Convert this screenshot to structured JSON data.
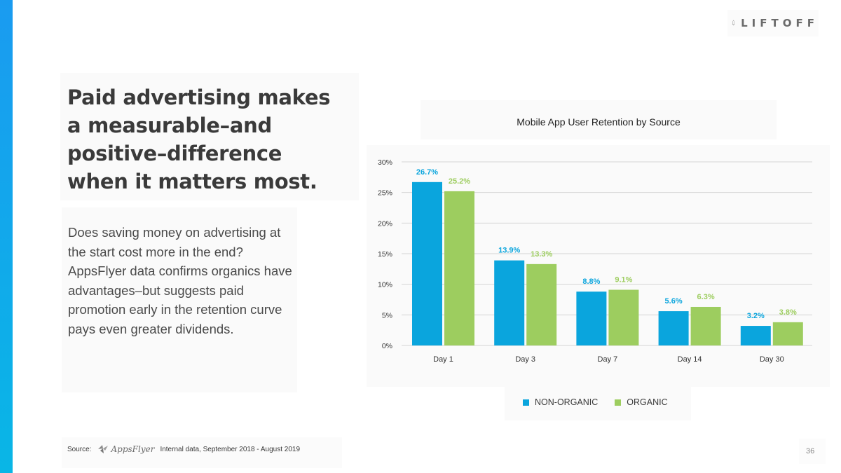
{
  "brand": {
    "logo_text": "LIFTOFF"
  },
  "slide": {
    "headline": "Paid advertising makes a measurable–and positive–difference when it matters most.",
    "body": "Does saving money on advertising at the start cost more in the end? AppsFlyer data confirms organics have advantages–but suggests paid promotion early in the retention curve pays even greater dividends.",
    "source_label": "Source:",
    "source_brand": "AppsFlyer",
    "source_note": "Internal data, September 2018 - August 2019",
    "page_number": "36"
  },
  "colors": {
    "non_organic": "#0aa5dd",
    "organic": "#9dcd5f",
    "grid": "#d4d4d4",
    "accent_bar_top": "#1a9bf0",
    "accent_bar_bottom": "#09b6e6"
  },
  "chart_data": {
    "type": "bar",
    "title": "Mobile App User Retention by Source",
    "categories": [
      "Day 1",
      "Day 3",
      "Day 7",
      "Day 14",
      "Day 30"
    ],
    "series": [
      {
        "name": "NON-ORGANIC",
        "values": [
          26.7,
          13.9,
          8.8,
          5.6,
          3.2
        ],
        "labels": [
          "26.7%",
          "13.9%",
          "8.8%",
          "5.6%",
          "3.2%"
        ]
      },
      {
        "name": "ORGANIC",
        "values": [
          25.2,
          13.3,
          9.1,
          6.3,
          3.8
        ],
        "labels": [
          "25.2%",
          "13.3%",
          "9.1%",
          "6.3%",
          "3.8%"
        ]
      }
    ],
    "yticks": [
      "0%",
      "5%",
      "10%",
      "15%",
      "20%",
      "25%",
      "30%"
    ],
    "ylim": [
      0,
      30
    ],
    "grid": true,
    "legend_position": "bottom",
    "xlabel": "",
    "ylabel": ""
  }
}
